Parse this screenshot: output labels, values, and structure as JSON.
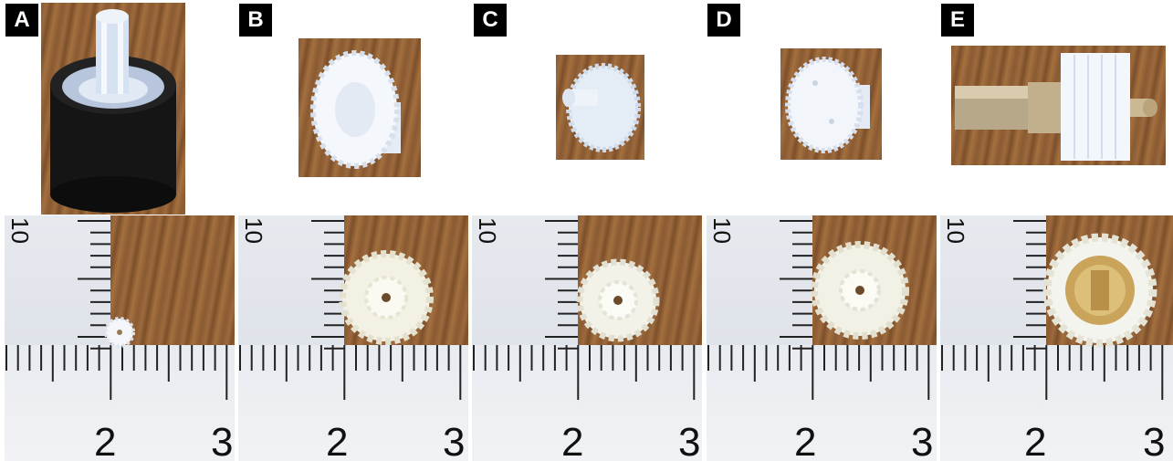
{
  "panels": [
    {
      "id": "A",
      "label": "A",
      "gear": "small-pinion",
      "scale": {
        "major_left": "2",
        "major_right": "3",
        "side": "10"
      }
    },
    {
      "id": "B",
      "label": "B",
      "gear": "double-gear",
      "scale": {
        "major_left": "2",
        "major_right": "3",
        "side": "10"
      }
    },
    {
      "id": "C",
      "label": "C",
      "gear": "double-gear",
      "scale": {
        "major_left": "2",
        "major_right": "3",
        "side": "10"
      }
    },
    {
      "id": "D",
      "label": "D",
      "gear": "double-gear",
      "scale": {
        "major_left": "2",
        "major_right": "3",
        "side": "10"
      }
    },
    {
      "id": "E",
      "label": "E",
      "gear": "gear-with-metal-shaft",
      "scale": {
        "major_left": "2",
        "major_right": "3",
        "side": "10"
      }
    }
  ],
  "colors": {
    "label_bg": "#000000",
    "label_fg": "#ffffff",
    "gear": "#f2f4f8",
    "wood": "#8a5a32",
    "ruler": "#e9eaee"
  }
}
